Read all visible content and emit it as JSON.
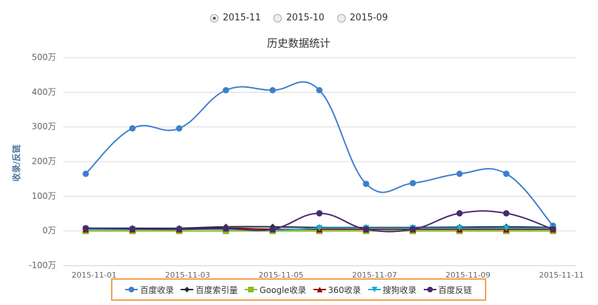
{
  "radio_options": [
    {
      "label": "2015-11",
      "selected": true
    },
    {
      "label": "2015-10",
      "selected": false
    },
    {
      "label": "2015-09",
      "selected": false
    }
  ],
  "chart_data": {
    "type": "line",
    "title": "历史数据统计",
    "y_label": "收录/反链",
    "categories": [
      "2015-11-01",
      null,
      "2015-11-03",
      null,
      "2015-11-05",
      null,
      "2015-11-07",
      null,
      "2015-11-09",
      null,
      "2015-11-11"
    ],
    "series": [
      {
        "name": "百度收录",
        "color": "#3d7fcc",
        "symbol": "circle",
        "values": [
          165,
          296,
          296,
          406,
          406,
          406,
          136,
          138,
          165,
          165,
          15
        ]
      },
      {
        "name": "百度索引量",
        "color": "#1c2b3a",
        "symbol": "diamond",
        "values": [
          8,
          8,
          8,
          12,
          12,
          10,
          10,
          10,
          11,
          12,
          10
        ]
      },
      {
        "name": "Google收录",
        "color": "#8bbc21",
        "symbol": "square",
        "values": [
          0,
          0,
          0,
          0,
          0,
          0,
          0,
          0,
          0,
          0,
          0
        ]
      },
      {
        "name": "360收录",
        "color": "#910000",
        "symbol": "triangle",
        "values": [
          5,
          5,
          5,
          8,
          5,
          5,
          5,
          5,
          5,
          5,
          5
        ]
      },
      {
        "name": "搜狗收录",
        "color": "#1aadce",
        "symbol": "triangle-down",
        "values": [
          5,
          5,
          5,
          5,
          2,
          8,
          8,
          8,
          8,
          8,
          8
        ]
      },
      {
        "name": "百度反链",
        "color": "#492970",
        "symbol": "circle",
        "values": [
          8,
          6,
          5,
          7,
          5,
          51,
          5,
          5,
          51,
          51,
          5
        ]
      }
    ],
    "ylim": [
      -100,
      500
    ],
    "yticks": [
      {
        "value": -100,
        "label": "-100万"
      },
      {
        "value": 0,
        "label": "0万"
      },
      {
        "value": 100,
        "label": "100万"
      },
      {
        "value": 200,
        "label": "200万"
      },
      {
        "value": 300,
        "label": "300万"
      },
      {
        "value": 400,
        "label": "400万"
      },
      {
        "value": 500,
        "label": "500万"
      }
    ],
    "grid": true
  }
}
